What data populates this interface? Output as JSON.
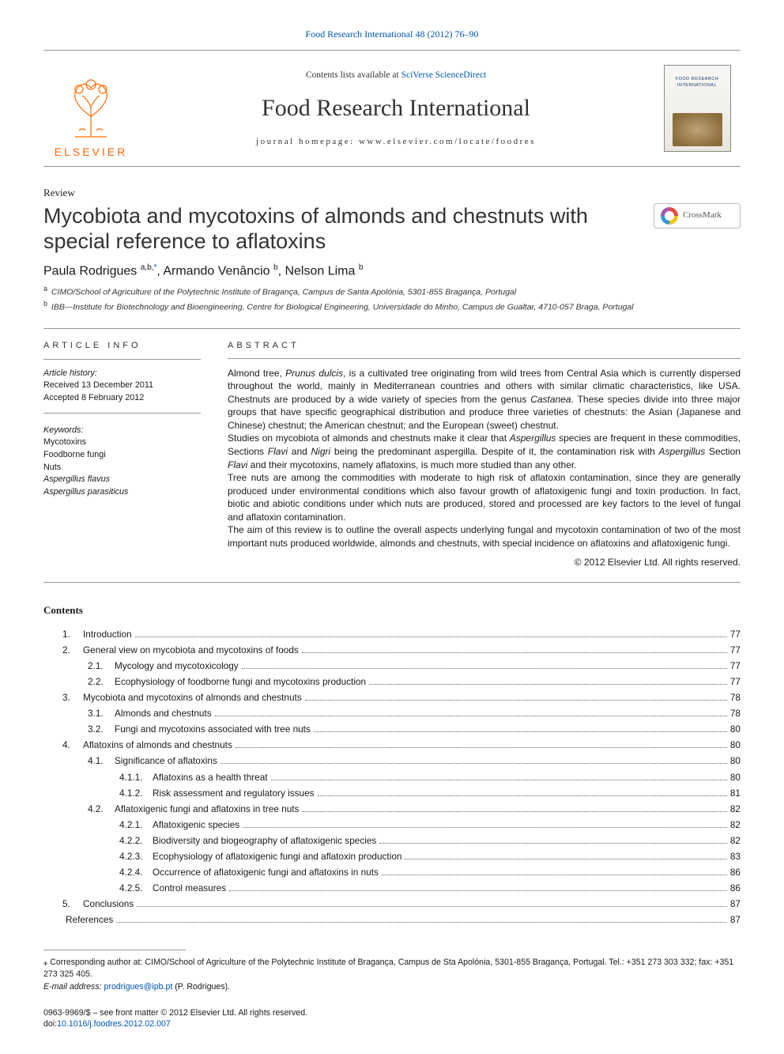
{
  "top_citation_link": "Food Research International 48 (2012) 76–90",
  "masthead": {
    "contents_line_prefix": "Contents lists available at ",
    "contents_line_link": "SciVerse ScienceDirect",
    "journal_name": "Food Research International",
    "homepage_line": "journal homepage: www.elsevier.com/locate/foodres",
    "publisher_name": "ELSEVIER",
    "cover_title": "FOOD RESEARCH INTERNATIONAL"
  },
  "article": {
    "type_label": "Review",
    "title": "Mycobiota and mycotoxins of almonds and chestnuts with special reference to aflatoxins",
    "crossmark_label": "CrossMark",
    "authors_html": "Paula Rodrigues <sup>a,b,</sup><sup class=\"corr\">*</sup>, Armando Venâncio <sup>b</sup>, Nelson Lima <sup>b</sup>",
    "affiliations": [
      {
        "mark": "a",
        "text": "CIMO/School of Agriculture of the Polytechnic Institute of Bragança, Campus de Santa Apolónia, 5301-855 Bragança, Portugal"
      },
      {
        "mark": "b",
        "text": "IBB—Institute for Biotechnology and Bioengineering, Centre for Biological Engineering, Universidade do Minho, Campus de Gualtar, 4710-057 Braga, Portugal"
      }
    ]
  },
  "article_info": {
    "heading": "article info",
    "history_label": "Article history:",
    "received": "Received 13 December 2011",
    "accepted": "Accepted 8 February 2012",
    "keywords_label": "Keywords:",
    "keywords": [
      "Mycotoxins",
      "Foodborne fungi",
      "Nuts",
      "Aspergillus flavus",
      "Aspergillus parasiticus"
    ]
  },
  "abstract": {
    "heading": "abstract",
    "paragraphs": [
      "Almond tree, Prunus dulcis, is a cultivated tree originating from wild trees from Central Asia which is currently dispersed throughout the world, mainly in Mediterranean countries and others with similar climatic characteristics, like USA. Chestnuts are produced by a wide variety of species from the genus Castanea. These species divide into three major groups that have specific geographical distribution and produce three varieties of chestnuts: the Asian (Japanese and Chinese) chestnut; the American chestnut; and the European (sweet) chestnut.",
      "Studies on mycobiota of almonds and chestnuts make it clear that Aspergillus species are frequent in these commodities, Sections Flavi and Nigri being the predominant aspergilla. Despite of it, the contamination risk with Aspergillus Section Flavi and their mycotoxins, namely aflatoxins, is much more studied than any other.",
      "Tree nuts are among the commodities with moderate to high risk of aflatoxin contamination, since they are generally produced under environmental conditions which also favour growth of aflatoxigenic fungi and toxin production. In fact, biotic and abiotic conditions under which nuts are produced, stored and processed are key factors to the level of fungal and aflatoxin contamination.",
      "The aim of this review is to outline the overall aspects underlying fungal and mycotoxin contamination of two of the most important nuts produced worldwide, almonds and chestnuts, with special incidence on aflatoxins and aflatoxigenic fungi."
    ],
    "copyright": "© 2012 Elsevier Ltd. All rights reserved."
  },
  "toc": {
    "heading": "Contents",
    "items": [
      {
        "lvl": 1,
        "num": "1.",
        "title": "Introduction",
        "page": "77"
      },
      {
        "lvl": 1,
        "num": "2.",
        "title": "General view on mycobiota and mycotoxins of foods",
        "page": "77"
      },
      {
        "lvl": 2,
        "num": "2.1.",
        "title": "Mycology and mycotoxicology",
        "page": "77"
      },
      {
        "lvl": 2,
        "num": "2.2.",
        "title": "Ecophysiology of foodborne fungi and mycotoxins production",
        "page": "77"
      },
      {
        "lvl": 1,
        "num": "3.",
        "title": "Mycobiota and mycotoxins of almonds and chestnuts",
        "page": "78"
      },
      {
        "lvl": 2,
        "num": "3.1.",
        "title": "Almonds and chestnuts",
        "page": "78"
      },
      {
        "lvl": 2,
        "num": "3.2.",
        "title": "Fungi and mycotoxins associated with tree nuts",
        "page": "80"
      },
      {
        "lvl": 1,
        "num": "4.",
        "title": "Aflatoxins of almonds and chestnuts",
        "page": "80"
      },
      {
        "lvl": 2,
        "num": "4.1.",
        "title": "Significance of aflatoxins",
        "page": "80"
      },
      {
        "lvl": 3,
        "num": "4.1.1.",
        "title": "Aflatoxins as a health threat",
        "page": "80"
      },
      {
        "lvl": 3,
        "num": "4.1.2.",
        "title": "Risk assessment and regulatory issues",
        "page": "81"
      },
      {
        "lvl": 2,
        "num": "4.2.",
        "title": "Aflatoxigenic fungi and aflatoxins in tree nuts",
        "page": "82"
      },
      {
        "lvl": 3,
        "num": "4.2.1.",
        "title": "Aflatoxigenic species",
        "page": "82"
      },
      {
        "lvl": 3,
        "num": "4.2.2.",
        "title": "Biodiversity and biogeography of aflatoxigenic species",
        "page": "82"
      },
      {
        "lvl": 3,
        "num": "4.2.3.",
        "title": "Ecophysiology of aflatoxigenic fungi and aflatoxin production",
        "page": "83"
      },
      {
        "lvl": 3,
        "num": "4.2.4.",
        "title": "Occurrence of aflatoxigenic fungi and aflatoxins in nuts",
        "page": "86"
      },
      {
        "lvl": 3,
        "num": "4.2.5.",
        "title": "Control measures",
        "page": "86"
      },
      {
        "lvl": 1,
        "num": "5.",
        "title": "Conclusions",
        "page": "87"
      },
      {
        "lvl": 0,
        "num": "",
        "title": "References",
        "page": "87"
      }
    ]
  },
  "footnotes": {
    "corr": "⁎ Corresponding author at: CIMO/School of Agriculture of the Polytechnic Institute of Bragança, Campus de Sta Apolónia, 5301-855 Bragança, Portugal. Tel.: +351 273 303 332; fax: +351 273 325 405.",
    "email_label": "E-mail address: ",
    "email": "prodrigues@ipb.pt",
    "email_suffix": " (P. Rodrigues)."
  },
  "copyright_block": {
    "line1": "0963-9969/$ – see front matter © 2012 Elsevier Ltd. All rights reserved.",
    "doi_prefix": "doi:",
    "doi": "10.1016/j.foodres.2012.02.007"
  },
  "colors": {
    "link": "#0056b3",
    "elsevier_orange": "#ff6a00",
    "text": "#1a1a1a",
    "rule": "#999999"
  }
}
